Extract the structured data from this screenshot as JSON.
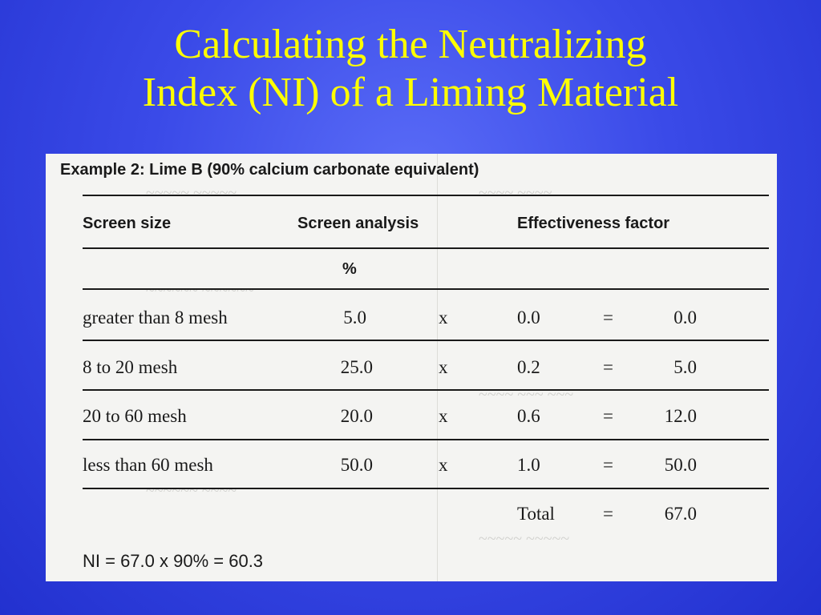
{
  "slide": {
    "title_line1": "Calculating the Neutralizing",
    "title_line2": "Index (NI) of a Liming Material"
  },
  "example": {
    "heading": "Example 2: Lime B (90% calcium carbonate equivalent)",
    "columns": {
      "screen_size": "Screen size",
      "screen_analysis": "Screen analysis",
      "effectiveness_factor": "Effectiveness factor"
    },
    "unit": "%",
    "rows": [
      {
        "size": "greater than 8 mesh",
        "analysis": "5.0",
        "op": "x",
        "factor": "0.0",
        "eq": "=",
        "result": "0.0"
      },
      {
        "size": "8 to 20 mesh",
        "analysis": "25.0",
        "op": "x",
        "factor": "0.2",
        "eq": "=",
        "result": "5.0"
      },
      {
        "size": "20 to 60 mesh",
        "analysis": "20.0",
        "op": "x",
        "factor": "0.6",
        "eq": "=",
        "result": "12.0"
      },
      {
        "size": "less than 60 mesh",
        "analysis": "50.0",
        "op": "x",
        "factor": "1.0",
        "eq": "=",
        "result": "50.0"
      }
    ],
    "total": {
      "label": "Total",
      "eq": "=",
      "value": "67.0"
    },
    "ni_formula": "NI = 67.0 x 90% = 60.3"
  },
  "colors": {
    "background": "#3a4ae8",
    "title": "#ffff00",
    "paper": "#f4f4f2",
    "ink": "#1a1a1a"
  }
}
